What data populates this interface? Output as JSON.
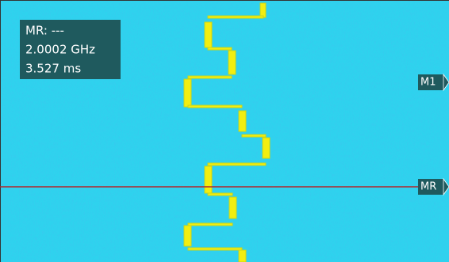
{
  "readout": {
    "lines": [
      "MR: ---",
      "2.0002 GHz",
      "3.527 ms"
    ]
  },
  "markers": [
    {
      "label": "M1"
    },
    {
      "label": "MR"
    }
  ]
}
